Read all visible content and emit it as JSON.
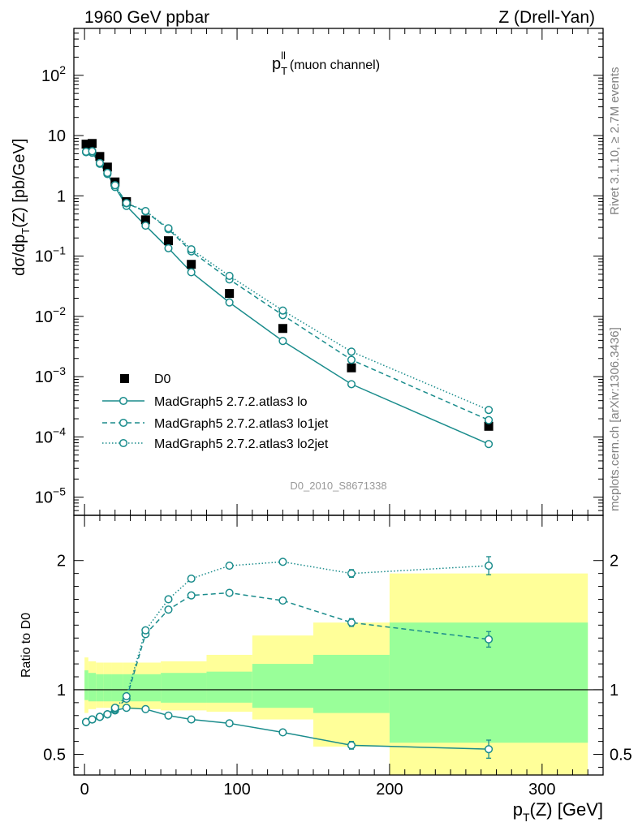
{
  "header": {
    "left": "1960 GeV ppbar",
    "right": "Z (Drell-Yan)",
    "side_rivet": "Rivet 3.1.10, ≥ 2.7M events",
    "side_mcplots": "mcplots.cern.ch [arXiv:1306.3436]"
  },
  "colors": {
    "mc": "#1a8c8c",
    "data": "#000000",
    "band_inner": "#99ff99",
    "band_outer": "#ffff99"
  },
  "chart_data": [
    {
      "type": "scatter",
      "title": "p_T^ll (muon channel)",
      "title_main": "p",
      "title_sub": "T",
      "title_sup": "ll",
      "title_rest": "(muon channel)",
      "ylabel": "dσ/dp_T(Z) [pb/GeV]",
      "ylabel_main": "dσ/dp",
      "ylabel_sub": "T",
      "ylabel_rest": "(Z) [pb/GeV]",
      "yscale": "log",
      "ylim": [
        5e-06,
        600
      ],
      "xlim": [
        -7,
        340
      ],
      "yticks": [
        {
          "v": 1e-05,
          "b": "10",
          "e": "−5"
        },
        {
          "v": 0.0001,
          "b": "10",
          "e": "−4"
        },
        {
          "v": 0.001,
          "b": "10",
          "e": "−3"
        },
        {
          "v": 0.01,
          "b": "10",
          "e": "−2"
        },
        {
          "v": 0.1,
          "b": "10",
          "e": "−1"
        },
        {
          "v": 1,
          "b": "1",
          "e": ""
        },
        {
          "v": 10,
          "b": "10",
          "e": ""
        },
        {
          "v": 100,
          "b": "10",
          "e": "2"
        }
      ],
      "watermark": "D0_2010_S8671338",
      "legend_position": "lower-left",
      "series": [
        {
          "name": "D0",
          "style": "data",
          "x": [
            1,
            5,
            10,
            15,
            20,
            27.5,
            40,
            55,
            70,
            95,
            130,
            175,
            265
          ],
          "y": [
            7.2,
            7.4,
            4.5,
            3.0,
            1.7,
            0.8,
            0.4,
            0.18,
            0.073,
            0.024,
            0.0063,
            0.0014,
            0.00015
          ]
        },
        {
          "name": "MadGraph5 2.7.2.atlas3 lo",
          "style": "solid",
          "x": [
            1,
            5,
            10,
            15,
            20,
            27.5,
            40,
            55,
            70,
            95,
            130,
            175,
            265
          ],
          "y": [
            5.3,
            5.2,
            3.4,
            2.3,
            1.4,
            0.68,
            0.32,
            0.135,
            0.054,
            0.017,
            0.0039,
            0.00075,
            7.6e-05
          ]
        },
        {
          "name": "MadGraph5 2.7.2.atlas3 lo1jet",
          "style": "dashed",
          "x": [
            1,
            5,
            10,
            15,
            20,
            27.5,
            40,
            55,
            70,
            95,
            130,
            175,
            265
          ],
          "y": [
            5.4,
            5.5,
            3.5,
            2.4,
            1.5,
            0.75,
            0.55,
            0.28,
            0.12,
            0.041,
            0.0105,
            0.0019,
            0.00019
          ]
        },
        {
          "name": "MadGraph5 2.7.2.atlas3 lo2jet",
          "style": "dotted",
          "x": [
            1,
            5,
            10,
            15,
            20,
            27.5,
            40,
            55,
            70,
            95,
            130,
            175,
            265
          ],
          "y": [
            5.4,
            5.5,
            3.5,
            2.4,
            1.5,
            0.76,
            0.56,
            0.29,
            0.13,
            0.047,
            0.0125,
            0.0026,
            0.00028
          ]
        }
      ]
    },
    {
      "type": "scatter",
      "ylabel": "Ratio to D0",
      "xlabel": "p_T(Z) [GeV]",
      "xlabel_main": "p",
      "xlabel_sub": "T",
      "xlabel_rest": "(Z) [GeV]",
      "ylim": [
        0.34,
        2.35
      ],
      "xlim": [
        -7,
        340
      ],
      "yticks": [
        0.5,
        1,
        2
      ],
      "xticks": [
        0,
        100,
        200,
        300
      ],
      "bands": [
        {
          "x0": 0,
          "x1": 2.5,
          "inner": [
            0.92,
            1.15
          ],
          "outer": [
            0.82,
            1.25
          ]
        },
        {
          "x0": 2.5,
          "x1": 7.5,
          "inner": [
            0.91,
            1.13
          ],
          "outer": [
            0.85,
            1.22
          ]
        },
        {
          "x0": 7.5,
          "x1": 12.5,
          "inner": [
            0.91,
            1.12
          ],
          "outer": [
            0.86,
            1.21
          ]
        },
        {
          "x0": 12.5,
          "x1": 17.5,
          "inner": [
            0.91,
            1.12
          ],
          "outer": [
            0.86,
            1.21
          ]
        },
        {
          "x0": 17.5,
          "x1": 25,
          "inner": [
            0.91,
            1.12
          ],
          "outer": [
            0.86,
            1.21
          ]
        },
        {
          "x0": 25,
          "x1": 50,
          "inner": [
            0.91,
            1.12
          ],
          "outer": [
            0.85,
            1.21
          ]
        },
        {
          "x0": 50,
          "x1": 80,
          "inner": [
            0.9,
            1.13
          ],
          "outer": [
            0.84,
            1.22
          ]
        },
        {
          "x0": 80,
          "x1": 110,
          "inner": [
            0.9,
            1.14
          ],
          "outer": [
            0.83,
            1.27
          ]
        },
        {
          "x0": 110,
          "x1": 150,
          "inner": [
            0.86,
            1.2
          ],
          "outer": [
            0.77,
            1.42
          ]
        },
        {
          "x0": 150,
          "x1": 200,
          "inner": [
            0.82,
            1.27
          ],
          "outer": [
            0.56,
            1.52
          ]
        },
        {
          "x0": 200,
          "x1": 330,
          "inner": [
            0.59,
            1.52
          ],
          "outer": [
            0.34,
            1.9
          ]
        }
      ],
      "series": [
        {
          "name": "MadGraph5 2.7.2.atlas3 lo",
          "style": "solid",
          "x": [
            1,
            5,
            10,
            15,
            20,
            27.5,
            40,
            55,
            70,
            95,
            130,
            175,
            265
          ],
          "y": [
            0.75,
            0.77,
            0.79,
            0.81,
            0.84,
            0.86,
            0.85,
            0.8,
            0.77,
            0.74,
            0.67,
            0.57,
            0.54
          ],
          "err": [
            0,
            0,
            0,
            0,
            0,
            0,
            0,
            0,
            0,
            0,
            0,
            0.03,
            0.07
          ]
        },
        {
          "name": "MadGraph5 2.7.2.atlas3 lo1jet",
          "style": "dashed",
          "x": [
            1,
            5,
            10,
            15,
            20,
            27.5,
            40,
            55,
            70,
            95,
            130,
            175,
            265
          ],
          "y": [
            0.75,
            0.77,
            0.79,
            0.81,
            0.85,
            0.93,
            1.43,
            1.62,
            1.73,
            1.75,
            1.69,
            1.52,
            1.39
          ],
          "err": [
            0,
            0,
            0,
            0,
            0,
            0,
            0,
            0,
            0,
            0,
            0,
            0.03,
            0.06
          ]
        },
        {
          "name": "MadGraph5 2.7.2.atlas3 lo2jet",
          "style": "dotted",
          "x": [
            1,
            5,
            10,
            15,
            20,
            27.5,
            40,
            55,
            70,
            95,
            130,
            175,
            265
          ],
          "y": [
            0.75,
            0.77,
            0.79,
            0.81,
            0.86,
            0.95,
            1.46,
            1.7,
            1.86,
            1.96,
            1.99,
            1.9,
            1.96
          ],
          "err": [
            0,
            0,
            0,
            0,
            0,
            0,
            0,
            0,
            0,
            0,
            0,
            0.03,
            0.07
          ]
        }
      ]
    }
  ]
}
